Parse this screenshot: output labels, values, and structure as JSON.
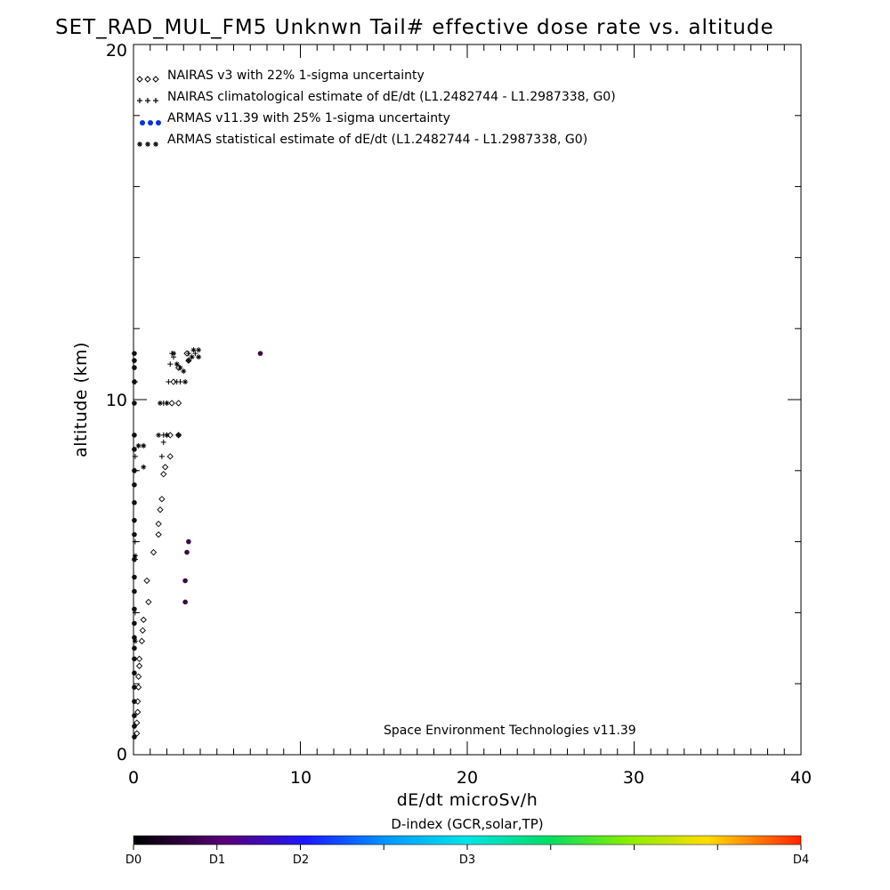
{
  "chart_data": {
    "type": "scatter",
    "title": "SET_RAD_MUL_FM5 Unknwn Tail#  effective dose rate vs. altitude",
    "xlabel": "dE/dt microSv/h",
    "ylabel": "altitude (km)",
    "xlim": [
      0,
      40
    ],
    "ylim": [
      0,
      20
    ],
    "x_ticks": [
      "0",
      "10",
      "20",
      "30",
      "40"
    ],
    "y_ticks": [
      "0",
      "10",
      "20"
    ],
    "grid": false,
    "legend_position": "top-left",
    "legend": [
      {
        "label": "NAIRAS v3 with 22% 1-sigma uncertainty",
        "marker": "diamond",
        "color": "#000000"
      },
      {
        "label": "NAIRAS climatological estimate of dE/dt (L1.2482744 - L1.2987338, G0)",
        "marker": "plus",
        "color": "#000000"
      },
      {
        "label": "ARMAS v11.39 with 25% 1-sigma uncertainty",
        "marker": "dot",
        "color": "#0033ff"
      },
      {
        "label": "ARMAS statistical estimate of dE/dt (L1.2482744 - L1.2987338, G0)",
        "marker": "asterisk",
        "color": "#000000"
      }
    ],
    "annotation": "Space Environment Technologies v11.39",
    "colorbar": {
      "title": "D-index (GCR,solar,TP)",
      "labels": [
        {
          "text": "D0",
          "value": 0
        },
        {
          "text": "D1",
          "value": 0.125
        },
        {
          "text": "D2",
          "value": 0.25
        },
        {
          "text": "D3",
          "value": 0.5
        },
        {
          "text": "D4",
          "value": 1.0
        }
      ]
    },
    "series": [
      {
        "name": "NAIRAS v3 with 22% 1-sigma uncertainty",
        "marker": "diamond",
        "points": [
          [
            0.2,
            0.6
          ],
          [
            0.2,
            0.9
          ],
          [
            0.25,
            1.2
          ],
          [
            0.25,
            1.5
          ],
          [
            0.3,
            1.9
          ],
          [
            0.3,
            2.2
          ],
          [
            0.35,
            2.5
          ],
          [
            0.35,
            2.7
          ],
          [
            0.5,
            3.2
          ],
          [
            0.55,
            3.5
          ],
          [
            0.6,
            3.8
          ],
          [
            0.9,
            4.3
          ],
          [
            0.8,
            4.9
          ],
          [
            1.2,
            5.7
          ],
          [
            1.5,
            6.2
          ],
          [
            1.5,
            6.5
          ],
          [
            1.6,
            6.9
          ],
          [
            1.7,
            7.2
          ],
          [
            1.8,
            7.9
          ],
          [
            1.9,
            8.1
          ],
          [
            2.2,
            8.4
          ],
          [
            2.2,
            9.0
          ],
          [
            2.3,
            9.9
          ],
          [
            2.4,
            10.5
          ],
          [
            2.7,
            10.9
          ],
          [
            3.2,
            11.3
          ],
          [
            3.3,
            11.1
          ],
          [
            2.7,
            9.0
          ],
          [
            2.7,
            9.9
          ]
        ]
      },
      {
        "name": "NAIRAS climatological estimate of dE/dt (L1.2482744 - L1.2987338, G0)",
        "marker": "plus",
        "points": [
          [
            0.1,
            4.0
          ],
          [
            0.1,
            5.5
          ],
          [
            0.1,
            6.0
          ],
          [
            0.1,
            8.0
          ],
          [
            0.1,
            8.4
          ],
          [
            0.1,
            10.5
          ],
          [
            1.7,
            8.4
          ],
          [
            1.8,
            8.8
          ],
          [
            1.8,
            9.0
          ],
          [
            2.0,
            9.0
          ],
          [
            1.8,
            9.9
          ],
          [
            2.0,
            9.9
          ],
          [
            2.1,
            10.5
          ],
          [
            2.2,
            11.0
          ],
          [
            2.4,
            11.2
          ],
          [
            2.3,
            11.3
          ],
          [
            2.6,
            10.5
          ],
          [
            2.8,
            10.5
          ],
          [
            3.3,
            11.3
          ],
          [
            3.7,
            11.3
          ]
        ]
      },
      {
        "name": "ARMAS v11.39 with 25% 1-sigma uncertainty",
        "marker": "dot",
        "points": [
          [
            0.05,
            0.5
          ],
          [
            0.05,
            0.8
          ],
          [
            0.05,
            1.1
          ],
          [
            0.05,
            1.5
          ],
          [
            0.05,
            1.9
          ],
          [
            0.05,
            2.3
          ],
          [
            0.05,
            2.7
          ],
          [
            0.05,
            3.0
          ],
          [
            0.05,
            3.3
          ],
          [
            0.05,
            3.7
          ],
          [
            0.05,
            4.1
          ],
          [
            0.05,
            4.6
          ],
          [
            0.05,
            5.0
          ],
          [
            0.05,
            5.5
          ],
          [
            0.05,
            6.2
          ],
          [
            0.05,
            6.6
          ],
          [
            0.05,
            7.1
          ],
          [
            0.05,
            7.6
          ],
          [
            0.05,
            8.0
          ],
          [
            0.05,
            8.6
          ],
          [
            0.05,
            9.0
          ],
          [
            0.05,
            9.9
          ],
          [
            0.05,
            10.5
          ],
          [
            0.05,
            10.9
          ],
          [
            0.05,
            11.1
          ],
          [
            0.05,
            11.3
          ],
          [
            3.3,
            6.0
          ],
          [
            3.2,
            5.7
          ],
          [
            3.1,
            4.9
          ],
          [
            3.1,
            4.3
          ],
          [
            7.6,
            11.3
          ]
        ]
      },
      {
        "name": "ARMAS statistical estimate of dE/dt (L1.2482744 - L1.2987338, G0)",
        "marker": "asterisk",
        "points": [
          [
            0.1,
            3.2
          ],
          [
            0.1,
            5.6
          ],
          [
            0.6,
            8.1
          ],
          [
            0.6,
            8.7
          ],
          [
            0.3,
            8.7
          ],
          [
            1.5,
            9.0
          ],
          [
            2.0,
            9.0
          ],
          [
            2.7,
            9.0
          ],
          [
            1.6,
            9.9
          ],
          [
            2.0,
            9.9
          ],
          [
            2.4,
            11.3
          ],
          [
            2.6,
            11.0
          ],
          [
            2.8,
            10.9
          ],
          [
            3.0,
            10.8
          ],
          [
            3.1,
            10.5
          ],
          [
            3.5,
            11.2
          ],
          [
            3.9,
            11.2
          ],
          [
            3.6,
            11.4
          ],
          [
            3.9,
            11.4
          ],
          [
            3.3,
            11.1
          ]
        ]
      }
    ]
  }
}
